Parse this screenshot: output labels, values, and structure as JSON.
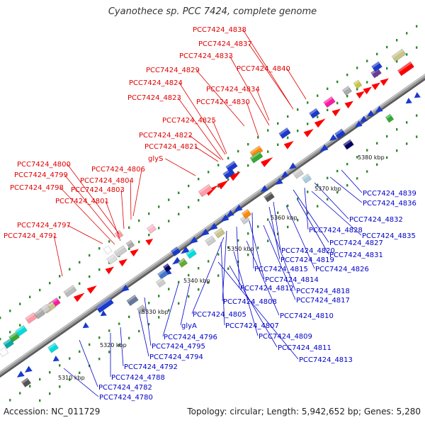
{
  "title": "Cyanothece sp. PCC 7424, complete genome",
  "footer": {
    "accession": "Accession: NC_011729",
    "summary": "Topology: circular; Length: 5,942,652 bp; Genes: 5,280"
  },
  "colors": {
    "forward_label": "#e00000",
    "reverse_label": "#0000c8",
    "backbone": "#8c8c8c",
    "tick_dots": "#2e8b2e"
  },
  "scale": [
    "5310 kbp",
    "5320 kbp",
    "5330 kbp",
    "5340 kbp",
    "5350 kbp",
    "5360 kbp",
    "5370 kbp",
    "5380 kbp"
  ],
  "forward_labels": [
    "PCC7424_4838",
    "PCC7424_4837",
    "PCC7424_4833",
    "PCC7424_4840",
    "PCC7424_4829",
    "PCC7424_4834",
    "PCC7424_4824",
    "PCC7424_4823",
    "PCC7424_4830",
    "PCC7424_4825",
    "PCC7424_4822",
    "PCC7424_4821",
    "glyS",
    "PCC7424_4800",
    "PCC7424_4806",
    "PCC7424_4799",
    "PCC7424_4804",
    "PCC7424_4798",
    "PCC7424_4803",
    "PCC7424_4801",
    "PCC7424_4797",
    "PCC7424_4791"
  ],
  "reverse_labels": [
    "PCC7424_4839",
    "PCC7424_4836",
    "PCC7424_4832",
    "PCC7424_4828",
    "PCC7424_4835",
    "PCC7424_4827",
    "PCC7424_4820",
    "PCC7424_4831",
    "PCC7424_4819",
    "PCC7424_4826",
    "PCC7424_4815",
    "PCC7424_4814",
    "PCC7424_4812",
    "PCC7424_4818",
    "PCC7424_4817",
    "PCC7424_4808",
    "PCC7424_4810",
    "PCC7424_4805",
    "PCC7424_4807",
    "PCC7424_4809",
    "glyA",
    "PCC7424_4796",
    "PCC7424_4811",
    "PCC7424_4795",
    "PCC7424_4794",
    "PCC7424_4813",
    "PCC7424_4792",
    "PCC7424_4788",
    "PCC7424_4782",
    "PCC7424_4780"
  ]
}
